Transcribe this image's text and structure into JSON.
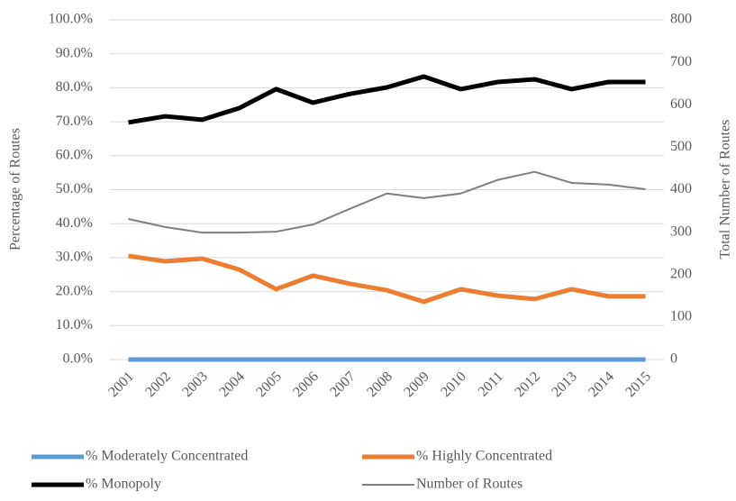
{
  "chart_data": {
    "type": "line",
    "categories": [
      "2001",
      "2002",
      "2003",
      "2004",
      "2005",
      "2006",
      "2007",
      "2008",
      "2009",
      "2010",
      "2011",
      "2012",
      "2013",
      "2014",
      "2015"
    ],
    "y_label": "Percentage of Routes",
    "y2_label": "Total Number of Routes",
    "ylim": [
      0,
      100
    ],
    "yticks": [
      {
        "value": 0,
        "label": "0.0%"
      },
      {
        "value": 10,
        "label": "10.0%"
      },
      {
        "value": 20,
        "label": "20.0%"
      },
      {
        "value": 30,
        "label": "30.0%"
      },
      {
        "value": 40,
        "label": "40.0%"
      },
      {
        "value": 50,
        "label": "50.0%"
      },
      {
        "value": 60,
        "label": "60.0%"
      },
      {
        "value": 70,
        "label": "70.0%"
      },
      {
        "value": 80,
        "label": "80.0%"
      },
      {
        "value": 90,
        "label": "90.0%"
      },
      {
        "value": 100,
        "label": "100.0%"
      }
    ],
    "y2lim": [
      0,
      800
    ],
    "y2ticks": [
      0,
      100,
      200,
      300,
      400,
      500,
      600,
      700,
      800
    ],
    "grid": true,
    "legend": "bottom",
    "series": [
      {
        "name": "% Moderately Concentrated",
        "color": "#5b9bd5",
        "values": [
          0,
          0,
          0,
          0,
          0,
          0,
          0,
          0,
          0,
          0,
          0,
          0,
          0,
          0,
          0
        ]
      },
      {
        "name": "% Highly Concentrated",
        "color": "#ed7d31",
        "values": [
          30.5,
          28.9,
          29.7,
          26.5,
          20.7,
          24.7,
          22.3,
          20.4,
          17.0,
          20.7,
          18.8,
          17.8,
          20.7,
          18.6,
          18.6
        ]
      },
      {
        "name": "% Monopoly",
        "color": "#000000",
        "values": [
          69.8,
          71.6,
          70.6,
          74.0,
          79.6,
          75.6,
          78.2,
          80.1,
          83.3,
          79.6,
          81.7,
          82.5,
          79.6,
          81.7,
          81.7
        ]
      },
      {
        "name": "Number of Routes",
        "color": "#7f7f7f",
        "axis": "y2",
        "values": [
          331,
          312,
          299,
          299,
          301,
          318,
          355,
          391,
          380,
          391,
          423,
          442,
          416,
          412,
          401
        ]
      }
    ]
  }
}
